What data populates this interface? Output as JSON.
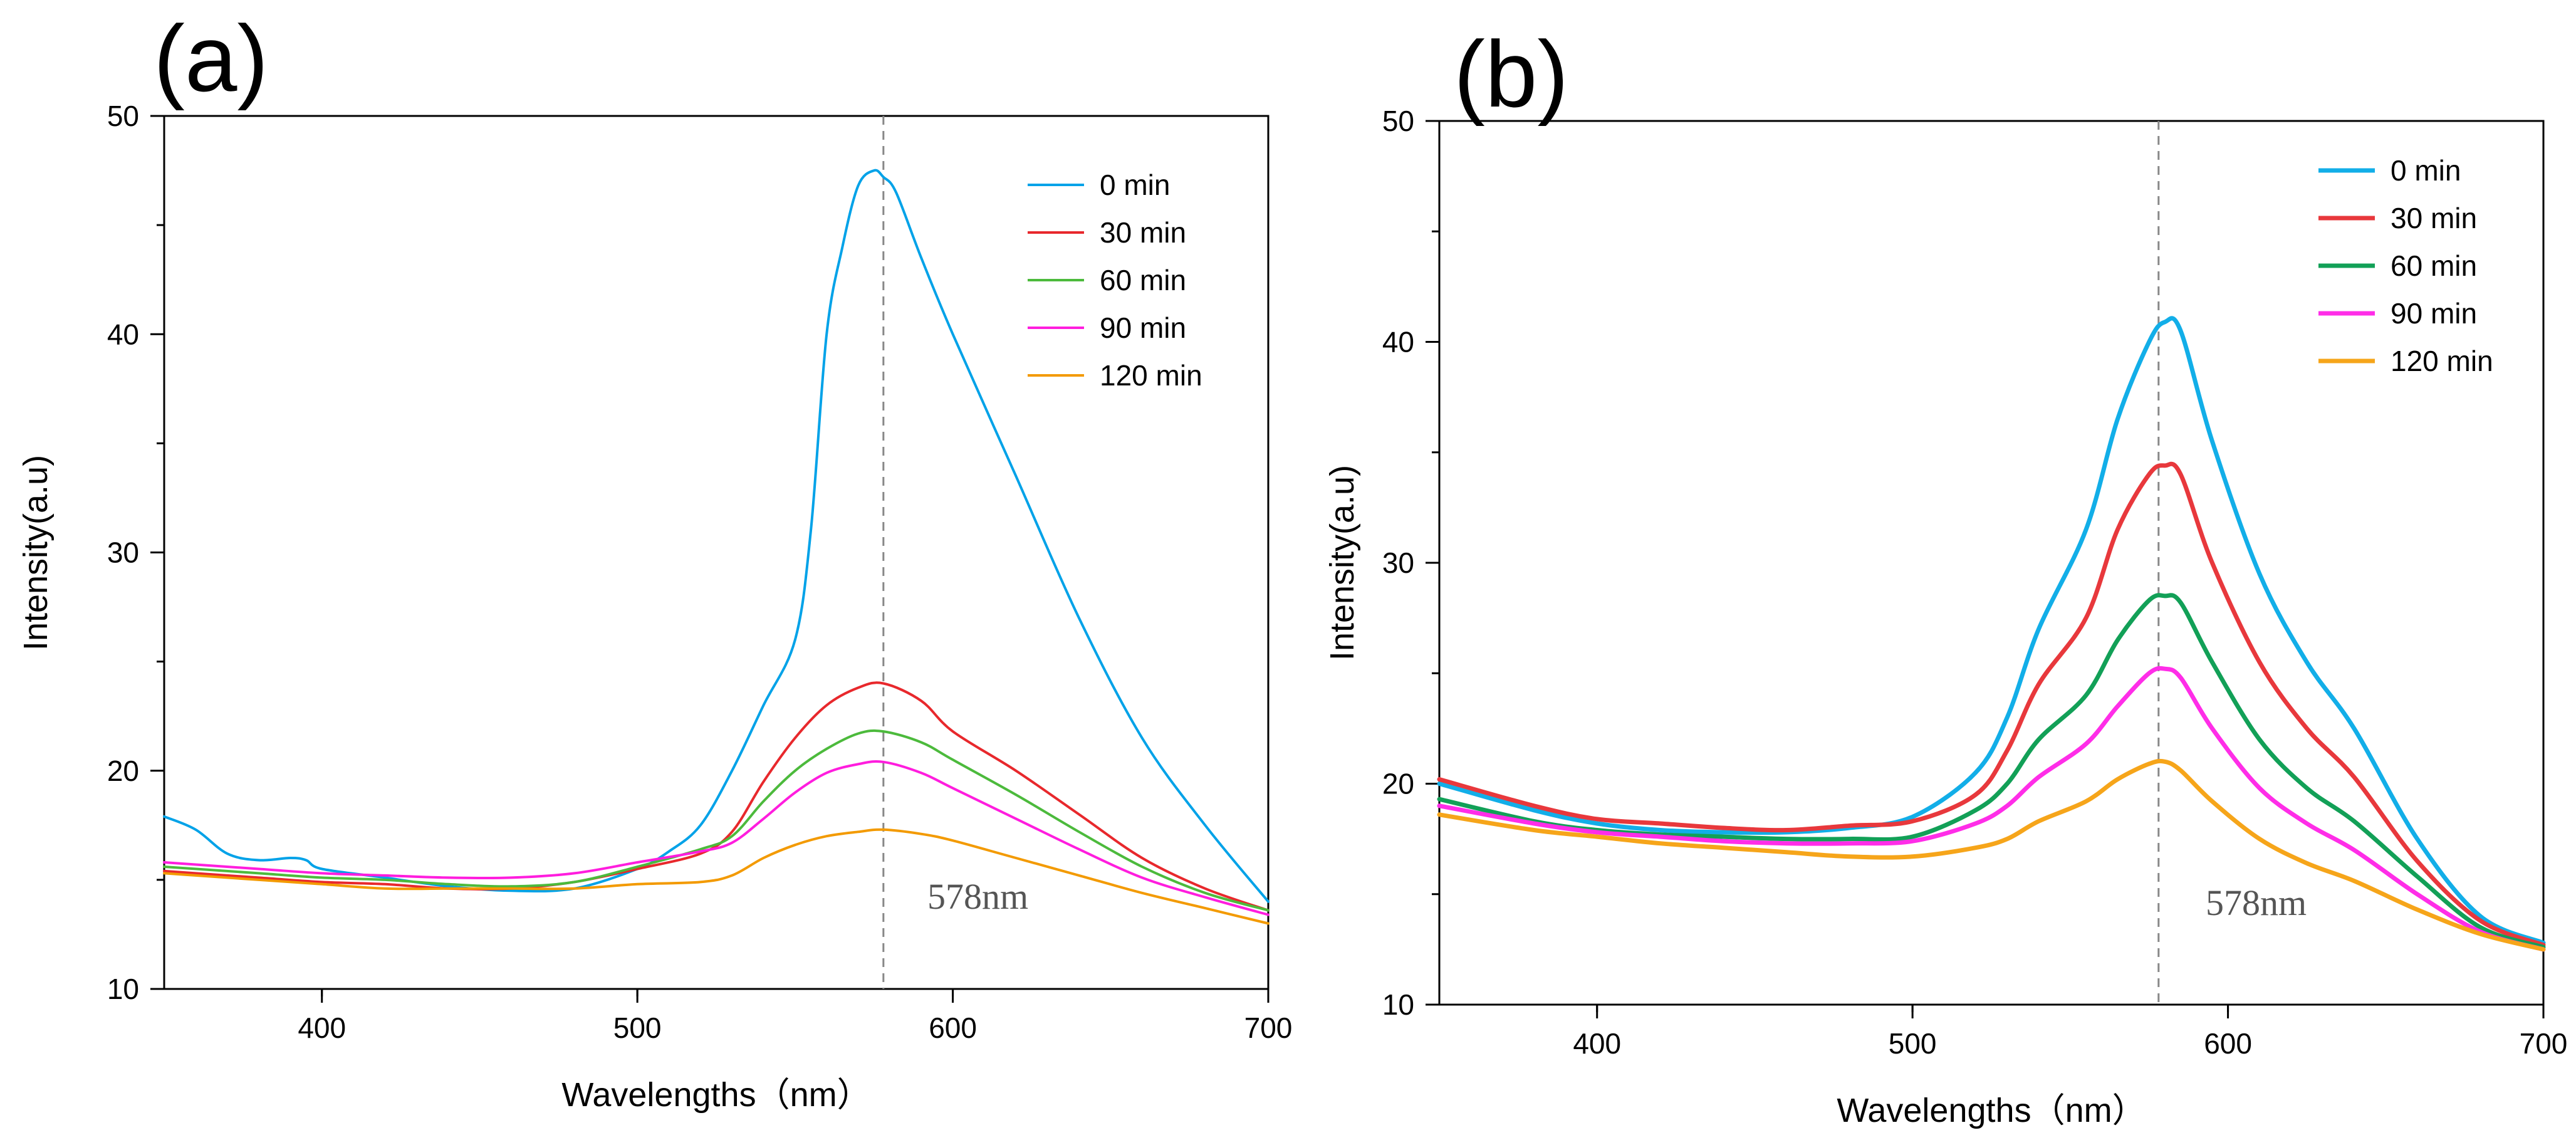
{
  "chart_data": [
    {
      "panel_label": "(a)",
      "type": "line",
      "xlabel": "Wavelengths（nm）",
      "ylabel": "Intensity(a.u)",
      "xlim": [
        350,
        700
      ],
      "ylim": [
        10,
        50
      ],
      "xticks": [
        400,
        500,
        600,
        700
      ],
      "yticks": [
        10,
        20,
        30,
        40,
        50
      ],
      "xtick_labels": [
        "400",
        "500",
        "600",
        "700"
      ],
      "ytick_labels": [
        "10",
        "20",
        "30",
        "40",
        "50"
      ],
      "legend_position": "top-right",
      "reference_line": {
        "x": 578,
        "label": "578nm"
      },
      "series": [
        {
          "name": "0 min",
          "color": "#00a2e8",
          "x": [
            350,
            360,
            370,
            380,
            390,
            395,
            400,
            420,
            440,
            460,
            480,
            500,
            510,
            520,
            530,
            540,
            550,
            555,
            560,
            565,
            570,
            575,
            578,
            582,
            590,
            600,
            620,
            640,
            660,
            680,
            700
          ],
          "y": [
            17.9,
            17.3,
            16.2,
            15.9,
            16.0,
            15.9,
            15.5,
            15.1,
            14.7,
            14.5,
            14.6,
            15.5,
            16.3,
            17.5,
            20.0,
            23.0,
            26.0,
            31.0,
            40.0,
            44.0,
            46.8,
            47.5,
            47.2,
            46.5,
            43.5,
            40.0,
            33.5,
            27.0,
            21.5,
            17.5,
            14.0
          ]
        },
        {
          "name": "30 min",
          "color": "#e8282c",
          "x": [
            350,
            380,
            400,
            420,
            440,
            460,
            480,
            500,
            520,
            530,
            540,
            550,
            560,
            570,
            578,
            590,
            600,
            620,
            640,
            660,
            680,
            700
          ],
          "y": [
            15.4,
            15.1,
            14.9,
            14.8,
            14.6,
            14.6,
            14.9,
            15.5,
            16.2,
            17.2,
            19.5,
            21.5,
            23.0,
            23.8,
            24.0,
            23.2,
            21.8,
            20.0,
            18.0,
            16.0,
            14.6,
            13.6
          ]
        },
        {
          "name": "60 min",
          "color": "#4cba3c",
          "x": [
            350,
            380,
            400,
            420,
            440,
            460,
            480,
            500,
            520,
            530,
            540,
            550,
            560,
            570,
            578,
            590,
            600,
            620,
            640,
            660,
            680,
            700
          ],
          "y": [
            15.6,
            15.3,
            15.1,
            15.0,
            14.8,
            14.7,
            14.9,
            15.6,
            16.4,
            17.0,
            18.6,
            20.0,
            21.0,
            21.7,
            21.8,
            21.3,
            20.5,
            18.9,
            17.2,
            15.6,
            14.4,
            13.6
          ]
        },
        {
          "name": "90 min",
          "color": "#ff1dde",
          "x": [
            350,
            380,
            400,
            420,
            440,
            460,
            480,
            500,
            520,
            530,
            540,
            550,
            560,
            570,
            578,
            590,
            600,
            620,
            640,
            660,
            680,
            700
          ],
          "y": [
            15.8,
            15.5,
            15.3,
            15.2,
            15.1,
            15.1,
            15.3,
            15.8,
            16.3,
            16.7,
            17.8,
            19.0,
            19.9,
            20.3,
            20.4,
            19.9,
            19.2,
            17.8,
            16.4,
            15.1,
            14.2,
            13.4
          ]
        },
        {
          "name": "120 min",
          "color": "#f39a00",
          "x": [
            350,
            380,
            400,
            420,
            440,
            460,
            480,
            500,
            520,
            530,
            540,
            550,
            560,
            570,
            578,
            590,
            600,
            620,
            640,
            660,
            680,
            700
          ],
          "y": [
            15.3,
            15.0,
            14.8,
            14.6,
            14.6,
            14.6,
            14.6,
            14.8,
            14.9,
            15.2,
            16.0,
            16.6,
            17.0,
            17.2,
            17.3,
            17.1,
            16.8,
            16.0,
            15.2,
            14.4,
            13.7,
            13.0
          ]
        }
      ]
    },
    {
      "panel_label": "(b)",
      "type": "line",
      "xlabel": "Wavelengths（nm）",
      "ylabel": "Intensity(a.u)",
      "xlim": [
        350,
        700
      ],
      "ylim": [
        10,
        50
      ],
      "xticks": [
        400,
        500,
        600,
        700
      ],
      "yticks": [
        10,
        20,
        30,
        40,
        50
      ],
      "xtick_labels": [
        "400",
        "500",
        "600",
        "700"
      ],
      "ytick_labels": [
        "10",
        "20",
        "30",
        "40",
        "50"
      ],
      "legend_position": "top-right",
      "reference_line": {
        "x": 578,
        "label": "578nm"
      },
      "series": [
        {
          "name": "0 min",
          "color": "#12aee8",
          "x": [
            350,
            380,
            400,
            420,
            440,
            460,
            480,
            500,
            520,
            530,
            540,
            555,
            565,
            575,
            580,
            585,
            595,
            610,
            625,
            640,
            660,
            680,
            700
          ],
          "y": [
            20.0,
            18.8,
            18.2,
            17.9,
            17.8,
            17.8,
            18.0,
            18.5,
            20.5,
            23.0,
            27.0,
            31.5,
            36.5,
            40.0,
            40.9,
            40.5,
            35.5,
            29.5,
            25.5,
            22.5,
            17.5,
            14.0,
            12.8
          ]
        },
        {
          "name": "30 min",
          "color": "#e8383c",
          "x": [
            350,
            380,
            400,
            420,
            440,
            460,
            480,
            500,
            520,
            530,
            540,
            555,
            565,
            575,
            580,
            585,
            595,
            610,
            625,
            640,
            660,
            680,
            700
          ],
          "y": [
            20.2,
            19.0,
            18.4,
            18.2,
            18.0,
            17.9,
            18.1,
            18.3,
            19.5,
            21.5,
            24.5,
            27.5,
            31.5,
            34.0,
            34.4,
            34.0,
            30.0,
            25.5,
            22.5,
            20.3,
            16.5,
            13.8,
            12.7
          ]
        },
        {
          "name": "60 min",
          "color": "#12a057",
          "x": [
            350,
            380,
            400,
            420,
            440,
            460,
            480,
            500,
            520,
            530,
            540,
            555,
            565,
            575,
            580,
            585,
            595,
            610,
            625,
            640,
            660,
            680,
            700
          ],
          "y": [
            19.3,
            18.3,
            17.9,
            17.7,
            17.6,
            17.5,
            17.5,
            17.6,
            18.8,
            20.0,
            22.0,
            24.0,
            26.5,
            28.3,
            28.5,
            28.2,
            25.5,
            22.0,
            19.8,
            18.3,
            15.8,
            13.5,
            12.6
          ]
        },
        {
          "name": "90 min",
          "color": "#ff2de8",
          "x": [
            350,
            380,
            400,
            420,
            440,
            460,
            480,
            500,
            520,
            530,
            540,
            555,
            565,
            575,
            580,
            585,
            595,
            610,
            625,
            640,
            660,
            680,
            700
          ],
          "y": [
            19.0,
            18.2,
            17.8,
            17.6,
            17.4,
            17.3,
            17.3,
            17.4,
            18.2,
            19.0,
            20.3,
            21.8,
            23.5,
            25.0,
            25.2,
            24.8,
            22.5,
            19.8,
            18.2,
            17.0,
            15.0,
            13.3,
            12.5
          ]
        },
        {
          "name": "120 min",
          "color": "#f6a51a",
          "x": [
            350,
            380,
            400,
            420,
            440,
            460,
            480,
            500,
            520,
            530,
            540,
            555,
            565,
            575,
            580,
            585,
            595,
            610,
            625,
            640,
            660,
            680,
            700
          ],
          "y": [
            18.6,
            17.9,
            17.6,
            17.3,
            17.1,
            16.9,
            16.7,
            16.7,
            17.1,
            17.5,
            18.3,
            19.2,
            20.2,
            20.9,
            21.0,
            20.6,
            19.2,
            17.5,
            16.4,
            15.6,
            14.3,
            13.2,
            12.5
          ]
        }
      ]
    }
  ]
}
